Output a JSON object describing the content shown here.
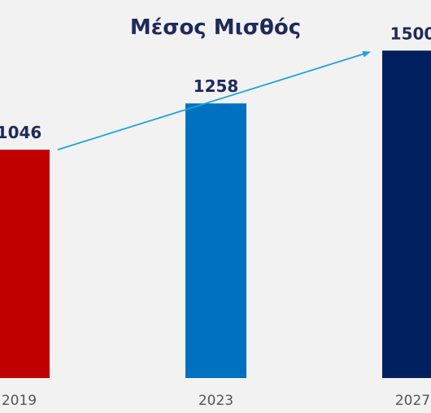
{
  "chart_data": {
    "type": "bar",
    "title": "Μέσος Μισθός",
    "categories": [
      "2019",
      "2023",
      "2027"
    ],
    "values": [
      1046,
      1258,
      1500
    ],
    "value_labels": [
      "1046",
      "1258",
      "1500"
    ],
    "bar_colors": [
      "#c00000",
      "#0070c0",
      "#002060"
    ],
    "xlabel": "",
    "ylabel": "",
    "ylim": [
      0,
      1600
    ],
    "grid": false,
    "legend": "none",
    "annotation": "trend-arrow",
    "arrow_color": "#1fa3d9"
  }
}
